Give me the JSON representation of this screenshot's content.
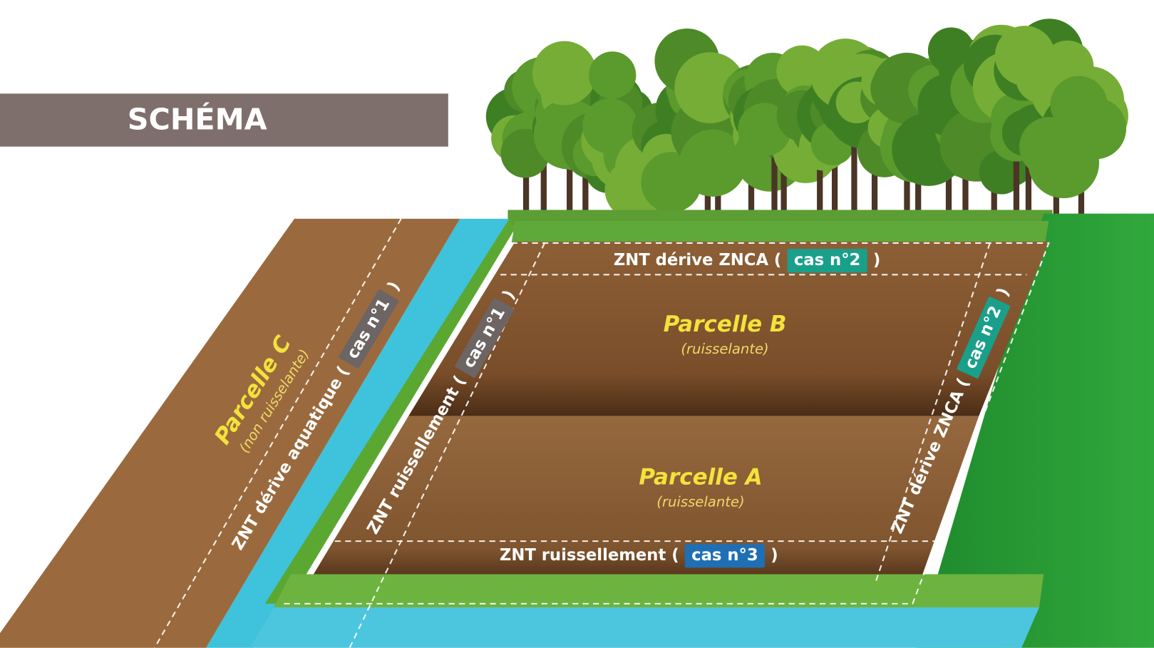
{
  "header": {
    "title": "SCHÉMA"
  },
  "parcels": [
    {
      "name": "Parcelle C",
      "note": "(non ruisselante)"
    },
    {
      "name": "Parcelle B",
      "note": "(ruisselante)"
    },
    {
      "name": "Parcelle A",
      "note": "(ruisselante)"
    }
  ],
  "zones": [
    {
      "label": "ZNT dérive aquatique (",
      "case": "cas n°1",
      "close": ")"
    },
    {
      "label": "ZNT ruissellement (",
      "case": "cas n°1",
      "close": ")"
    },
    {
      "label": "ZNT dérive ZNCA (",
      "case": "cas n°2",
      "close": ")"
    },
    {
      "label": "ZNT dérive ZNCA (",
      "case": "cas n°2",
      "close": ")"
    },
    {
      "label": "ZNT ruissellement (",
      "case": "cas n°3",
      "close": ")"
    }
  ]
}
